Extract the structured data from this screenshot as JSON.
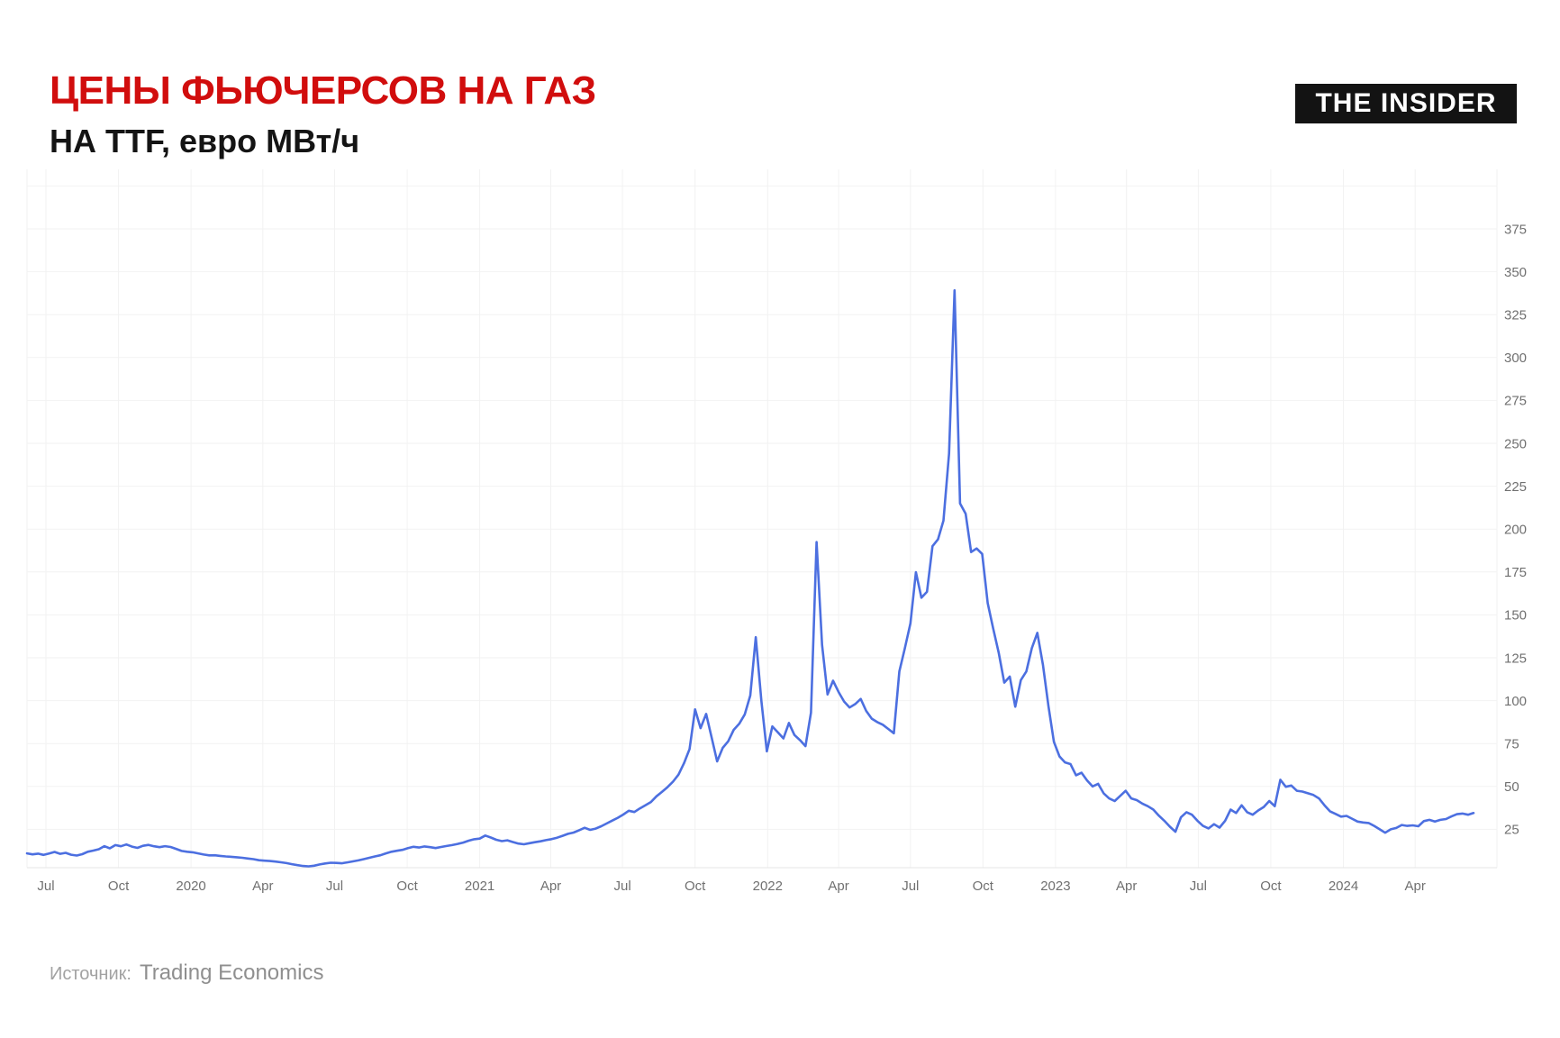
{
  "header": {
    "title": "ЦЕНЫ ФЬЮЧЕРСОВ НА ГАЗ",
    "subtitle": "НА TTF, евро МВт/ч",
    "title_color": "#d10d0d",
    "logo_text": "THE INSIDER"
  },
  "footer": {
    "source_label": "Источник:",
    "source_value": "Trading Economics"
  },
  "chart_data": {
    "type": "line",
    "title": "ЦЕНЫ ФЬЮЧЕРСОВ НА ГАЗ",
    "subtitle": "НА TTF, евро МВт/ч",
    "source": "Trading Economics",
    "line_color": "#4c6fe0",
    "grid_color": "#f2f2f2",
    "axis_line_color": "#e6e6e6",
    "tick_text_color": "#707070",
    "grid": true,
    "legend": null,
    "ylim": [
      0,
      410
    ],
    "y_ticks": [
      25,
      50,
      75,
      100,
      125,
      150,
      175,
      200,
      225,
      250,
      275,
      300,
      325,
      350,
      375
    ],
    "x_ticks": [
      {
        "date": "2019-07-01",
        "label": "Jul"
      },
      {
        "date": "2019-10-01",
        "label": "Oct"
      },
      {
        "date": "2020-01-01",
        "label": "2020"
      },
      {
        "date": "2020-04-01",
        "label": "Apr"
      },
      {
        "date": "2020-07-01",
        "label": "Jul"
      },
      {
        "date": "2020-10-01",
        "label": "Oct"
      },
      {
        "date": "2021-01-01",
        "label": "2021"
      },
      {
        "date": "2021-04-01",
        "label": "Apr"
      },
      {
        "date": "2021-07-01",
        "label": "Jul"
      },
      {
        "date": "2021-10-01",
        "label": "Oct"
      },
      {
        "date": "2022-01-01",
        "label": "2022"
      },
      {
        "date": "2022-04-01",
        "label": "Apr"
      },
      {
        "date": "2022-07-01",
        "label": "Jul"
      },
      {
        "date": "2022-10-01",
        "label": "Oct"
      },
      {
        "date": "2023-01-01",
        "label": "2023"
      },
      {
        "date": "2023-04-01",
        "label": "Apr"
      },
      {
        "date": "2023-07-01",
        "label": "Jul"
      },
      {
        "date": "2023-10-01",
        "label": "Oct"
      },
      {
        "date": "2024-01-01",
        "label": "2024"
      },
      {
        "date": "2024-04-01",
        "label": "Apr"
      }
    ],
    "series": [
      {
        "name": "TTF gas futures, EUR/MWh",
        "frequency": "weekly",
        "start_date": "2019-06-07",
        "values": [
          11.0,
          10.4,
          10.8,
          10.1,
          10.9,
          11.8,
          10.7,
          11.3,
          10.2,
          9.7,
          10.5,
          11.9,
          12.6,
          13.4,
          15.2,
          13.9,
          15.8,
          15.1,
          16.2,
          14.9,
          14.2,
          15.4,
          15.9,
          15.1,
          14.6,
          15.2,
          14.7,
          13.6,
          12.4,
          11.9,
          11.6,
          11.0,
          10.3,
          9.8,
          9.9,
          9.5,
          9.2,
          9.0,
          8.7,
          8.4,
          8.0,
          7.6,
          7.0,
          6.7,
          6.5,
          6.2,
          5.8,
          5.3,
          4.7,
          4.1,
          3.6,
          3.4,
          3.8,
          4.5,
          5.1,
          5.5,
          5.4,
          5.2,
          5.7,
          6.3,
          6.9,
          7.6,
          8.4,
          9.2,
          9.9,
          11.0,
          11.9,
          12.5,
          13.0,
          14.0,
          14.8,
          14.4,
          15.0,
          14.6,
          14.1,
          14.7,
          15.3,
          15.8,
          16.5,
          17.3,
          18.4,
          19.2,
          19.6,
          21.4,
          20.2,
          18.9,
          18.1,
          18.6,
          17.6,
          16.7,
          16.3,
          16.9,
          17.5,
          18.0,
          18.7,
          19.3,
          20.1,
          21.2,
          22.4,
          23.1,
          24.5,
          25.9,
          24.7,
          25.4,
          26.8,
          28.4,
          30.1,
          31.7,
          33.6,
          35.8,
          35.1,
          37.2,
          39.0,
          40.9,
          44.2,
          46.8,
          49.6,
          52.8,
          56.9,
          63.5,
          71.8,
          94.9,
          84.0,
          92.3,
          78.5,
          64.6,
          72.5,
          76.3,
          83.0,
          86.5,
          92.0,
          103.0,
          137.0,
          100.0,
          70.5,
          85.0,
          81.5,
          78.0,
          87.0,
          80.0,
          77.0,
          73.5,
          93.0,
          192.5,
          132.5,
          103.6,
          111.6,
          105.0,
          99.5,
          96.0,
          98.0,
          101.0,
          94.0,
          89.5,
          87.5,
          86.0,
          83.5,
          81.0,
          117.0,
          130.5,
          145.0,
          174.9,
          160.0,
          163.5,
          190.0,
          194.0,
          205.0,
          244.0,
          339.2,
          214.9,
          209.0,
          186.6,
          188.7,
          185.5,
          156.9,
          142.0,
          128.0,
          110.5,
          114.0,
          96.5,
          112.0,
          117.0,
          130.6,
          139.5,
          121.0,
          97.0,
          76.0,
          67.5,
          64.0,
          63.0,
          56.5,
          58.0,
          53.5,
          50.0,
          51.5,
          46.0,
          43.0,
          41.5,
          44.5,
          47.5,
          43.0,
          42.0,
          40.0,
          38.5,
          36.5,
          33.0,
          30.0,
          26.5,
          23.6,
          32.0,
          35.0,
          33.5,
          30.0,
          27.0,
          25.5,
          28.0,
          26.0,
          30.0,
          36.5,
          34.5,
          39.0,
          35.0,
          33.5,
          36.0,
          38.0,
          41.5,
          38.5,
          53.9,
          49.8,
          50.5,
          47.5,
          47.0,
          46.0,
          45.0,
          43.0,
          39.0,
          35.5,
          34.0,
          32.4,
          32.8,
          31.2,
          29.5,
          29.0,
          28.7,
          27.0,
          25.0,
          23.0,
          25.0,
          25.8,
          27.5,
          27.0,
          27.3,
          26.8,
          29.8,
          30.5,
          29.5,
          30.5,
          31.0,
          32.5,
          33.8,
          34.2,
          33.5,
          34.5
        ]
      }
    ]
  }
}
